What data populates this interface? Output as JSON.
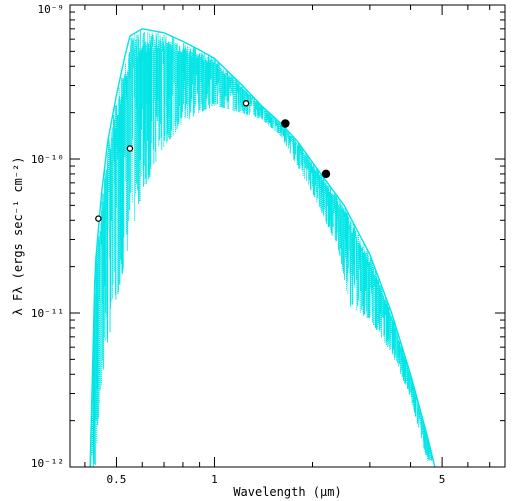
{
  "chart_data": {
    "type": "line",
    "title": "",
    "xlabel": "Wavelength (μm)",
    "ylabel": "λ Fλ (ergs sec⁻¹ cm⁻²)",
    "x_scale": "log",
    "y_scale": "log",
    "xlim": [
      0.36,
      7.8
    ],
    "ylim": [
      1e-12,
      1e-09
    ],
    "x_ticks": [
      {
        "value": 0.5,
        "label": "0.5"
      },
      {
        "value": 1,
        "label": "1"
      },
      {
        "value": 5,
        "label": "5"
      }
    ],
    "y_ticks": [
      {
        "value": 1e-12,
        "label": "10⁻¹²"
      },
      {
        "value": 1e-11,
        "label": "10⁻¹¹"
      },
      {
        "value": 1e-10,
        "label": "10⁻¹⁰"
      },
      {
        "value": 1e-09,
        "label": "10⁻⁹"
      }
    ],
    "grid": false,
    "legend": "none",
    "series": [
      {
        "kind": "model-spectrum-envelope",
        "color": "#00e5e5",
        "style": "dotted",
        "points": [
          [
            0.415,
            1e-12
          ],
          [
            0.43,
            2e-11
          ],
          [
            0.45,
            6e-11
          ],
          [
            0.47,
            1.3e-10
          ],
          [
            0.5,
            2.6e-10
          ],
          [
            0.53,
            4.6e-10
          ],
          [
            0.55,
            6.3e-10
          ],
          [
            0.6,
            7e-10
          ],
          [
            0.7,
            6.6e-10
          ],
          [
            0.8,
            5.8e-10
          ],
          [
            0.9,
            5.1e-10
          ],
          [
            1.0,
            4.5e-10
          ],
          [
            1.2,
            3.1e-10
          ],
          [
            1.4,
            2.2e-10
          ],
          [
            1.6,
            1.7e-10
          ],
          [
            1.8,
            1.3e-10
          ],
          [
            2.0,
            9.5e-11
          ],
          [
            2.5,
            5e-11
          ],
          [
            3.0,
            2.4e-11
          ],
          [
            3.5,
            1e-11
          ],
          [
            4.0,
            4e-12
          ],
          [
            4.5,
            1.6e-12
          ],
          [
            4.75,
            1e-12
          ]
        ],
        "troughs": [
          [
            0.43,
            1e-12
          ],
          [
            0.46,
            5e-12
          ],
          [
            0.5,
            1.2e-11
          ],
          [
            0.55,
            3e-11
          ],
          [
            0.6,
            6e-11
          ],
          [
            0.7,
            1.2e-10
          ],
          [
            0.8,
            1.7e-10
          ],
          [
            0.9,
            2e-10
          ],
          [
            1.0,
            2.2e-10
          ],
          [
            1.2,
            2e-10
          ],
          [
            1.4,
            1.8e-10
          ],
          [
            1.6,
            1.4e-10
          ],
          [
            2.0,
            6e-11
          ],
          [
            2.4,
            2.6e-11
          ],
          [
            2.6,
            1.1e-11
          ],
          [
            3.0,
            9e-12
          ],
          [
            3.5,
            5.5e-12
          ],
          [
            4.0,
            2.8e-12
          ],
          [
            4.5,
            1.1e-12
          ]
        ]
      },
      {
        "kind": "photometry",
        "color": "#000000",
        "points": [
          {
            "x": 0.44,
            "y": 4.1e-11,
            "filled": false
          },
          {
            "x": 0.55,
            "y": 1.17e-10,
            "filled": false
          },
          {
            "x": 1.25,
            "y": 2.3e-10,
            "filled": false
          },
          {
            "x": 1.65,
            "y": 1.7e-10,
            "filled": true
          },
          {
            "x": 2.2,
            "y": 8e-11,
            "filled": true
          }
        ]
      }
    ]
  }
}
